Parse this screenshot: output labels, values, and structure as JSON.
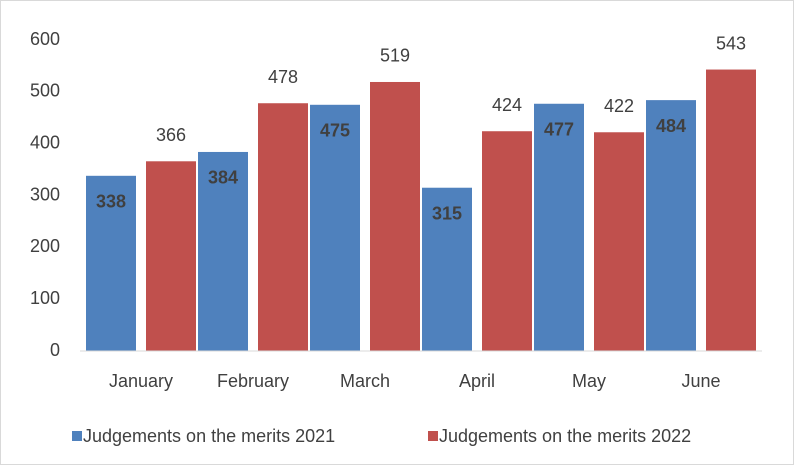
{
  "chart_data": {
    "type": "bar",
    "categories": [
      "January",
      "February",
      "March",
      "April",
      "May",
      "June"
    ],
    "series": [
      {
        "name": "Judgements on the merits 2021",
        "color": "#4f81bd",
        "values": [
          338,
          384,
          475,
          315,
          477,
          484
        ]
      },
      {
        "name": "Judgements on the merits 2022",
        "color": "#c0504d",
        "values": [
          366,
          478,
          519,
          424,
          422,
          543
        ]
      }
    ],
    "ylim": [
      0,
      600
    ],
    "yticks": [
      0,
      100,
      200,
      300,
      400,
      500,
      600
    ],
    "grid": false,
    "legend": "bottom"
  }
}
